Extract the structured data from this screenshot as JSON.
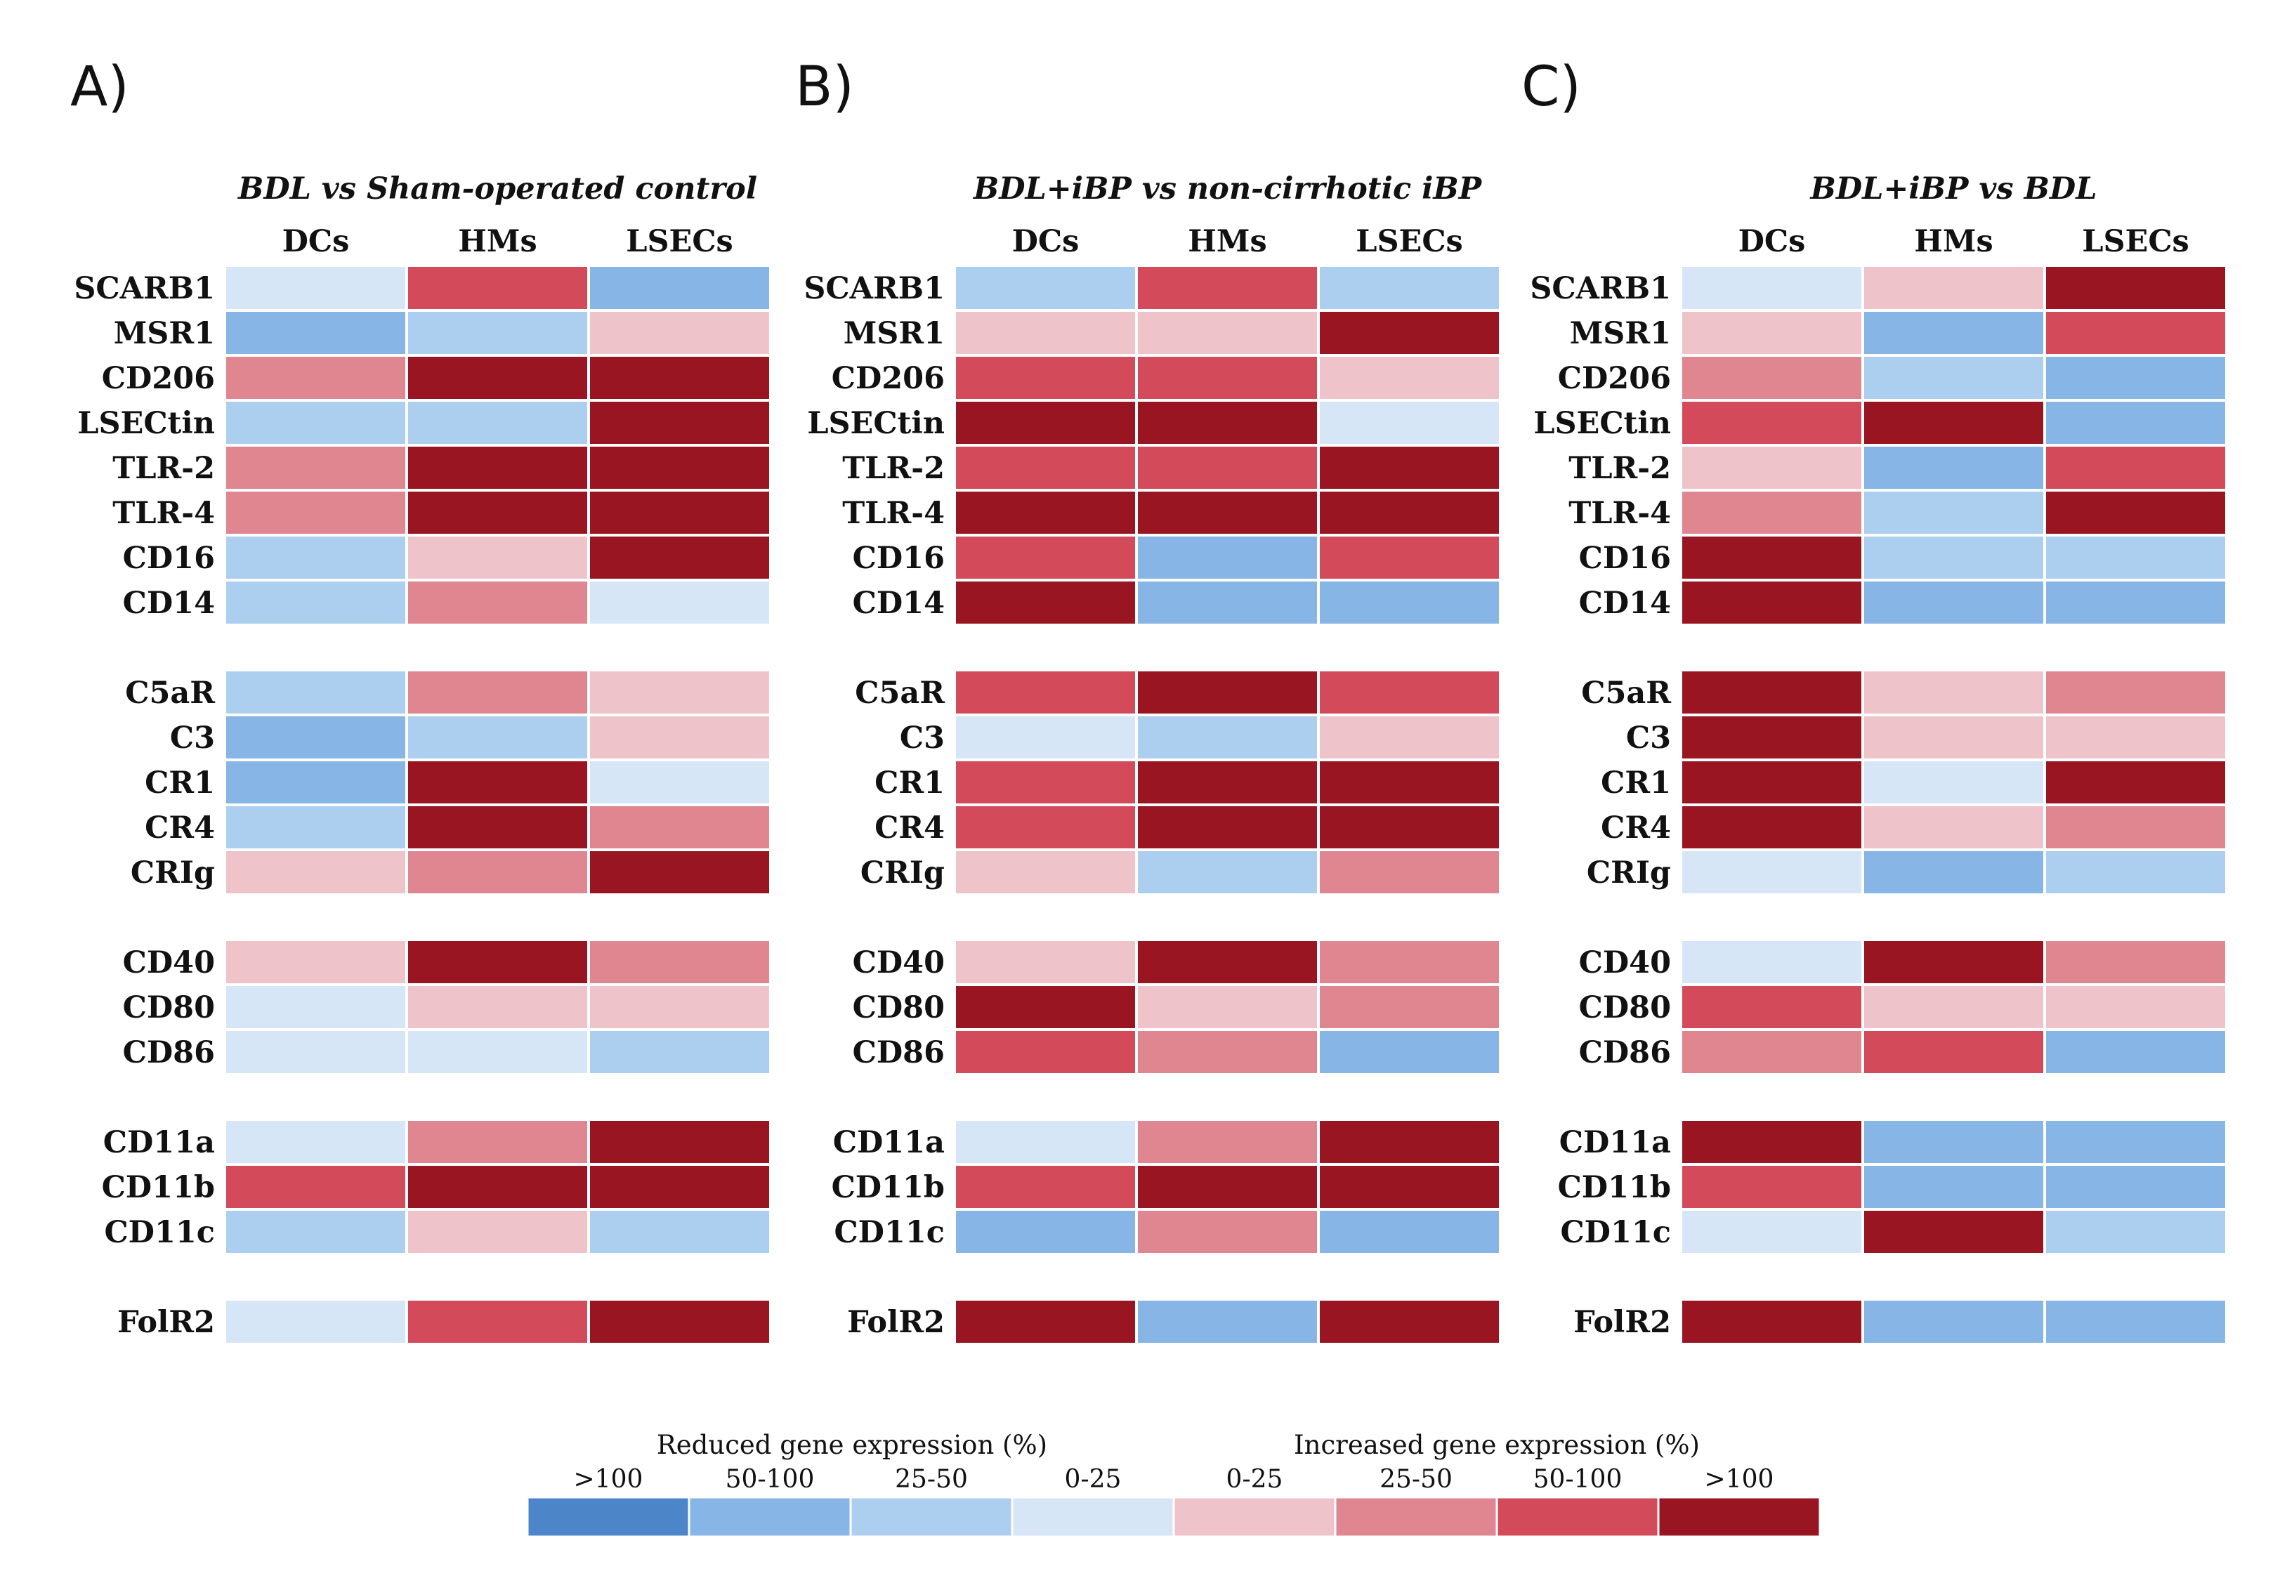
{
  "chart_data": {
    "type": "heatmap",
    "columns": [
      "DCs",
      "HMs",
      "LSECs"
    ],
    "row_groups": [
      [
        "SCARB1",
        "MSR1",
        "CD206",
        "LSECtin",
        "TLR-2",
        "TLR-4",
        "CD16",
        "CD14"
      ],
      [
        "C5aR",
        "C3",
        "CR1",
        "CR4",
        "CRIg"
      ],
      [
        "CD40",
        "CD80",
        "CD86"
      ],
      [
        "CD11a",
        "CD11b",
        "CD11c"
      ],
      [
        "FolR2"
      ]
    ],
    "scale_note": "Levels: -4 = reduced >100%, -3 = reduced 50-100%, -2 = reduced 25-50%, -1 = reduced 0-25%, 1 = increased 0-25%, 2 = increased 25-50%, 3 = increased 50-100%, 4 = increased >100%",
    "panels": [
      {
        "letter": "A)",
        "title": "BDL vs Sham-operated control",
        "values": [
          [
            [
              -1,
              3,
              -3
            ],
            [
              -3,
              -2,
              1
            ],
            [
              2,
              4,
              4
            ],
            [
              -2,
              -2,
              4
            ],
            [
              2,
              4,
              4
            ],
            [
              2,
              4,
              4
            ],
            [
              -2,
              1,
              4
            ],
            [
              -2,
              2,
              -1
            ]
          ],
          [
            [
              -2,
              2,
              1
            ],
            [
              -3,
              -2,
              1
            ],
            [
              -3,
              4,
              -1
            ],
            [
              -2,
              4,
              2
            ],
            [
              1,
              2,
              4
            ]
          ],
          [
            [
              1,
              4,
              2
            ],
            [
              -1,
              1,
              1
            ],
            [
              -1,
              -1,
              -2
            ]
          ],
          [
            [
              -1,
              2,
              4
            ],
            [
              3,
              4,
              4
            ],
            [
              -2,
              1,
              -2
            ]
          ],
          [
            [
              -1,
              3,
              4
            ]
          ]
        ]
      },
      {
        "letter": "B)",
        "title": "BDL+iBP vs non-cirrhotic iBP",
        "values": [
          [
            [
              -2,
              3,
              -2
            ],
            [
              1,
              1,
              4
            ],
            [
              3,
              3,
              1
            ],
            [
              4,
              4,
              -1
            ],
            [
              3,
              3,
              4
            ],
            [
              4,
              4,
              4
            ],
            [
              3,
              -3,
              3
            ],
            [
              4,
              -3,
              -3
            ]
          ],
          [
            [
              3,
              4,
              3
            ],
            [
              -1,
              -2,
              1
            ],
            [
              3,
              4,
              4
            ],
            [
              3,
              4,
              4
            ],
            [
              1,
              -2,
              2
            ]
          ],
          [
            [
              1,
              4,
              2
            ],
            [
              4,
              1,
              2
            ],
            [
              3,
              2,
              -3
            ]
          ],
          [
            [
              -1,
              2,
              4
            ],
            [
              3,
              4,
              4
            ],
            [
              -3,
              2,
              -3
            ]
          ],
          [
            [
              4,
              -3,
              4
            ]
          ]
        ]
      },
      {
        "letter": "C)",
        "title": "BDL+iBP vs BDL",
        "values": [
          [
            [
              -1,
              1,
              4
            ],
            [
              1,
              -3,
              3
            ],
            [
              2,
              -2,
              -3
            ],
            [
              3,
              4,
              -3
            ],
            [
              1,
              -3,
              3
            ],
            [
              2,
              -2,
              4
            ],
            [
              4,
              -2,
              -2
            ],
            [
              4,
              -3,
              -3
            ]
          ],
          [
            [
              4,
              1,
              2
            ],
            [
              4,
              1,
              1
            ],
            [
              4,
              -1,
              4
            ],
            [
              4,
              1,
              2
            ],
            [
              -1,
              -3,
              -2
            ]
          ],
          [
            [
              -1,
              4,
              2
            ],
            [
              3,
              1,
              1
            ],
            [
              2,
              3,
              -3
            ]
          ],
          [
            [
              4,
              -3,
              -3
            ],
            [
              3,
              -3,
              -3
            ],
            [
              -1,
              4,
              -2
            ]
          ],
          [
            [
              4,
              -3,
              -3
            ]
          ]
        ]
      }
    ],
    "legend": {
      "reduced_title": "Reduced gene expression (%)",
      "increased_title": "Increased gene expression (%)",
      "bins": [
        {
          "label": ">100",
          "color": "#4d86c8"
        },
        {
          "label": "50-100",
          "color": "#86b5e6"
        },
        {
          "label": "25-50",
          "color": "#acceef"
        },
        {
          "label": "0-25",
          "color": "#d6e6f7"
        },
        {
          "label": "0-25",
          "color": "#efc3ca"
        },
        {
          "label": "25-50",
          "color": "#df8690"
        },
        {
          "label": "50-100",
          "color": "#d34a5a"
        },
        {
          "label": ">100",
          "color": "#981521"
        }
      ]
    },
    "colors": {
      "-4": "#4d86c8",
      "-3": "#86b5e6",
      "-2": "#acceef",
      "-1": "#d6e6f7",
      "1": "#efc3ca",
      "2": "#df8690",
      "3": "#d34a5a",
      "4": "#981521"
    }
  }
}
